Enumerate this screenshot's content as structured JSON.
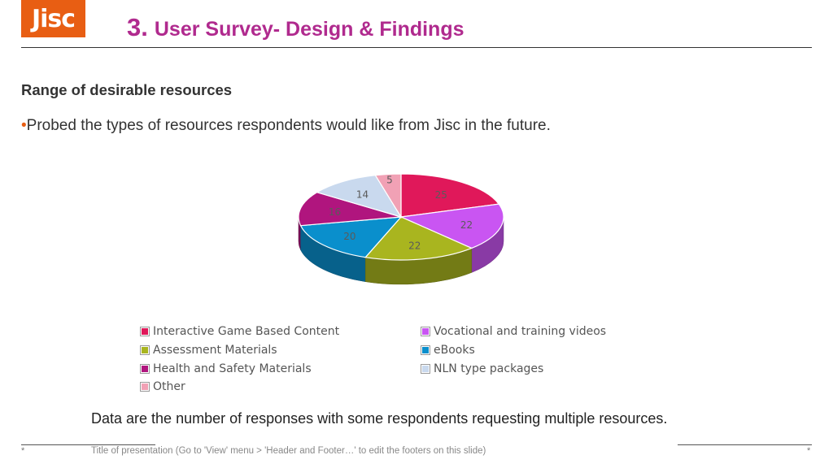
{
  "header": {
    "logo_text": "Jisc",
    "title_number": "3.",
    "title_text": "User Survey- Design & Findings"
  },
  "content": {
    "subtitle": "Range of desirable resources",
    "bullet_marker": "•",
    "bullet_text": "Probed the types of resources respondents would like from Jisc in the future",
    "bullet_end": ".",
    "note": "Data are the number of responses with some respondents requesting multiple resources."
  },
  "footer": {
    "left_marker": "*",
    "text": "Title of presentation (Go to 'View' menu > 'Header and Footer…' to edit the footers on this slide)",
    "right_marker": "*"
  },
  "chart_data": {
    "type": "pie",
    "style": "3d",
    "categories": [
      "Interactive Game Based Content",
      "Vocational and training videos",
      "Assessment Materials",
      "eBooks",
      "Health and Safety Materials",
      "NLN type packages",
      "Other"
    ],
    "values": [
      25,
      22,
      22,
      20,
      16,
      14,
      5
    ],
    "colors": [
      "#e0185a",
      "#c955f2",
      "#a9b51f",
      "#0a8fcc",
      "#b0157e",
      "#c9d9ee",
      "#f1a1b5"
    ],
    "legend_position": "bottom",
    "data_labels": true
  }
}
